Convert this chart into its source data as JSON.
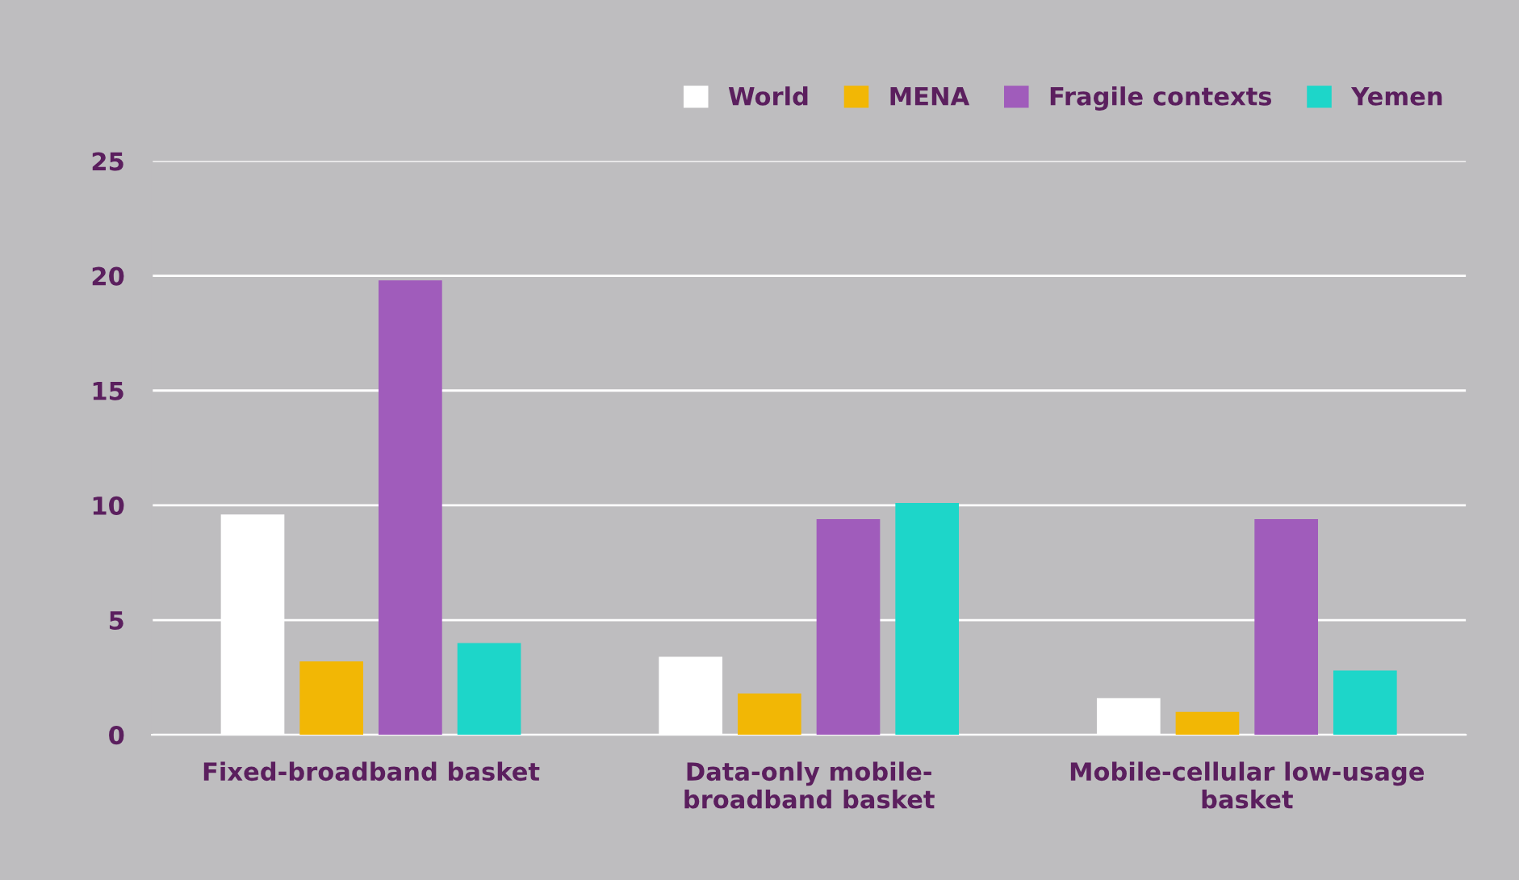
{
  "chart_data": {
    "type": "bar",
    "categories": [
      "Fixed-broadband basket",
      "Data-only mobile-\nbroadband basket",
      "Mobile-cellular low-usage\nbasket"
    ],
    "series": [
      {
        "name": "World",
        "color": "#ffffff",
        "values": [
          9.6,
          3.4,
          1.6
        ]
      },
      {
        "name": "MENA",
        "color": "#f2b705",
        "values": [
          3.2,
          1.8,
          1.0
        ]
      },
      {
        "name": "Fragile contexts",
        "color": "#a05cbb",
        "values": [
          19.8,
          9.4,
          9.4
        ]
      },
      {
        "name": "Yemen",
        "color": "#1dd6c9",
        "values": [
          4.0,
          10.1,
          2.8
        ]
      }
    ],
    "ylim": [
      0,
      25
    ],
    "yticks": [
      0,
      5,
      10,
      15,
      20,
      25
    ],
    "grid": "y",
    "legend": "top right"
  }
}
